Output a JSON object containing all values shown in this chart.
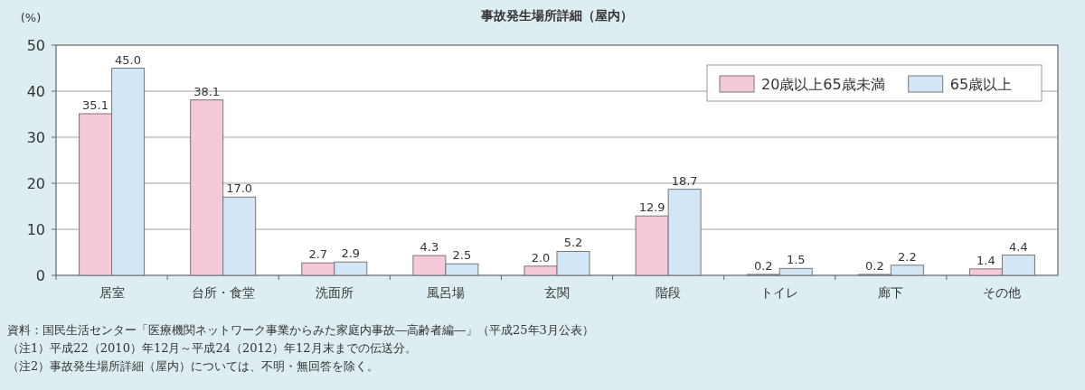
{
  "chart_data": {
    "type": "bar",
    "title": "事故発生場所詳細（屋内）",
    "ylabel": "(%)",
    "categories": [
      "居室",
      "台所・食堂",
      "洗面所",
      "風呂場",
      "玄関",
      "階段",
      "トイレ",
      "廊下",
      "その他"
    ],
    "series": [
      {
        "name": "20歳以上65歳未満",
        "color": "#f6c9da",
        "values": [
          35.1,
          38.1,
          2.7,
          4.3,
          2.0,
          12.9,
          0.2,
          0.2,
          1.4
        ],
        "value_labels": [
          "35.1",
          "38.1",
          "2.7",
          "4.3",
          "2.0",
          "12.9",
          "0.2",
          "0.2",
          "1.4"
        ]
      },
      {
        "name": "65歳以上",
        "color": "#d3e6f5",
        "values": [
          45.0,
          17.0,
          2.9,
          2.5,
          5.2,
          18.7,
          1.5,
          2.2,
          4.4
        ],
        "value_labels": [
          "45.0",
          "17.0",
          "2.9",
          "2.5",
          "5.2",
          "18.7",
          "1.5",
          "2.2",
          "4.4"
        ]
      }
    ],
    "ylim": [
      0,
      50
    ],
    "yticks": [
      0,
      10,
      20,
      30,
      40,
      50
    ],
    "grid": "y",
    "legend": "top right",
    "annotations": [
      "資料：国民生活センター「医療機関ネットワーク事業からみた家庭内事故―高齢者編―」（平成25年3月公表）",
      "（注1）平成22（2010）年12月～平成24（2012）年12月末までの伝送分。",
      "（注2）事故発生場所詳細（屋内）については、不明・無回答を除く。"
    ]
  }
}
